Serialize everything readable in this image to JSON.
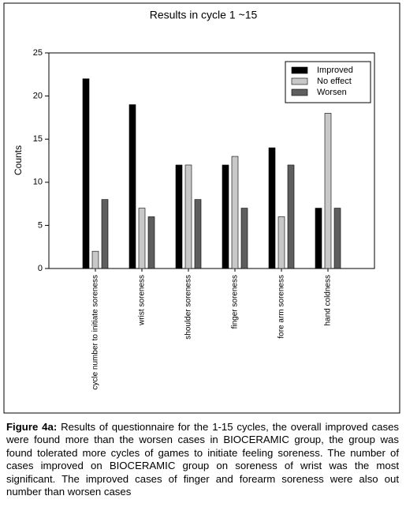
{
  "chart_data": {
    "type": "bar",
    "title": "Results in cycle 1 ~15",
    "y_label": "Counts",
    "categories": [
      "cycle number to initiate soreness",
      "wrist soreness",
      "shoulder soreness",
      "finger soreness",
      "fore arm soreness",
      "hand coldness"
    ],
    "series": [
      {
        "name": "Improved",
        "color": "#000000",
        "values": [
          22,
          19,
          12,
          12,
          14,
          7
        ]
      },
      {
        "name": "No effect",
        "color": "#c8c8c8",
        "values": [
          2,
          7,
          12,
          13,
          6,
          18
        ]
      },
      {
        "name": "Worsen",
        "color": "#5e5e5e",
        "values": [
          8,
          6,
          8,
          7,
          12,
          7
        ]
      }
    ],
    "ylim": [
      0,
      25
    ],
    "yticks": [
      0,
      5,
      10,
      15,
      20,
      25
    ],
    "legend": "upper-right"
  },
  "caption": {
    "label": "Figure 4a:",
    "text": "Results of questionnaire for the 1-15 cycles, the overall improved cases were found more than the worsen cases in BIOCERAMIC group, the group was found tolerated more cycles of games to initiate feeling soreness. The number of cases improved on BIOCERAMIC group on soreness of wrist was the most significant. The improved cases of finger and forearm soreness were also out number than worsen cases"
  }
}
